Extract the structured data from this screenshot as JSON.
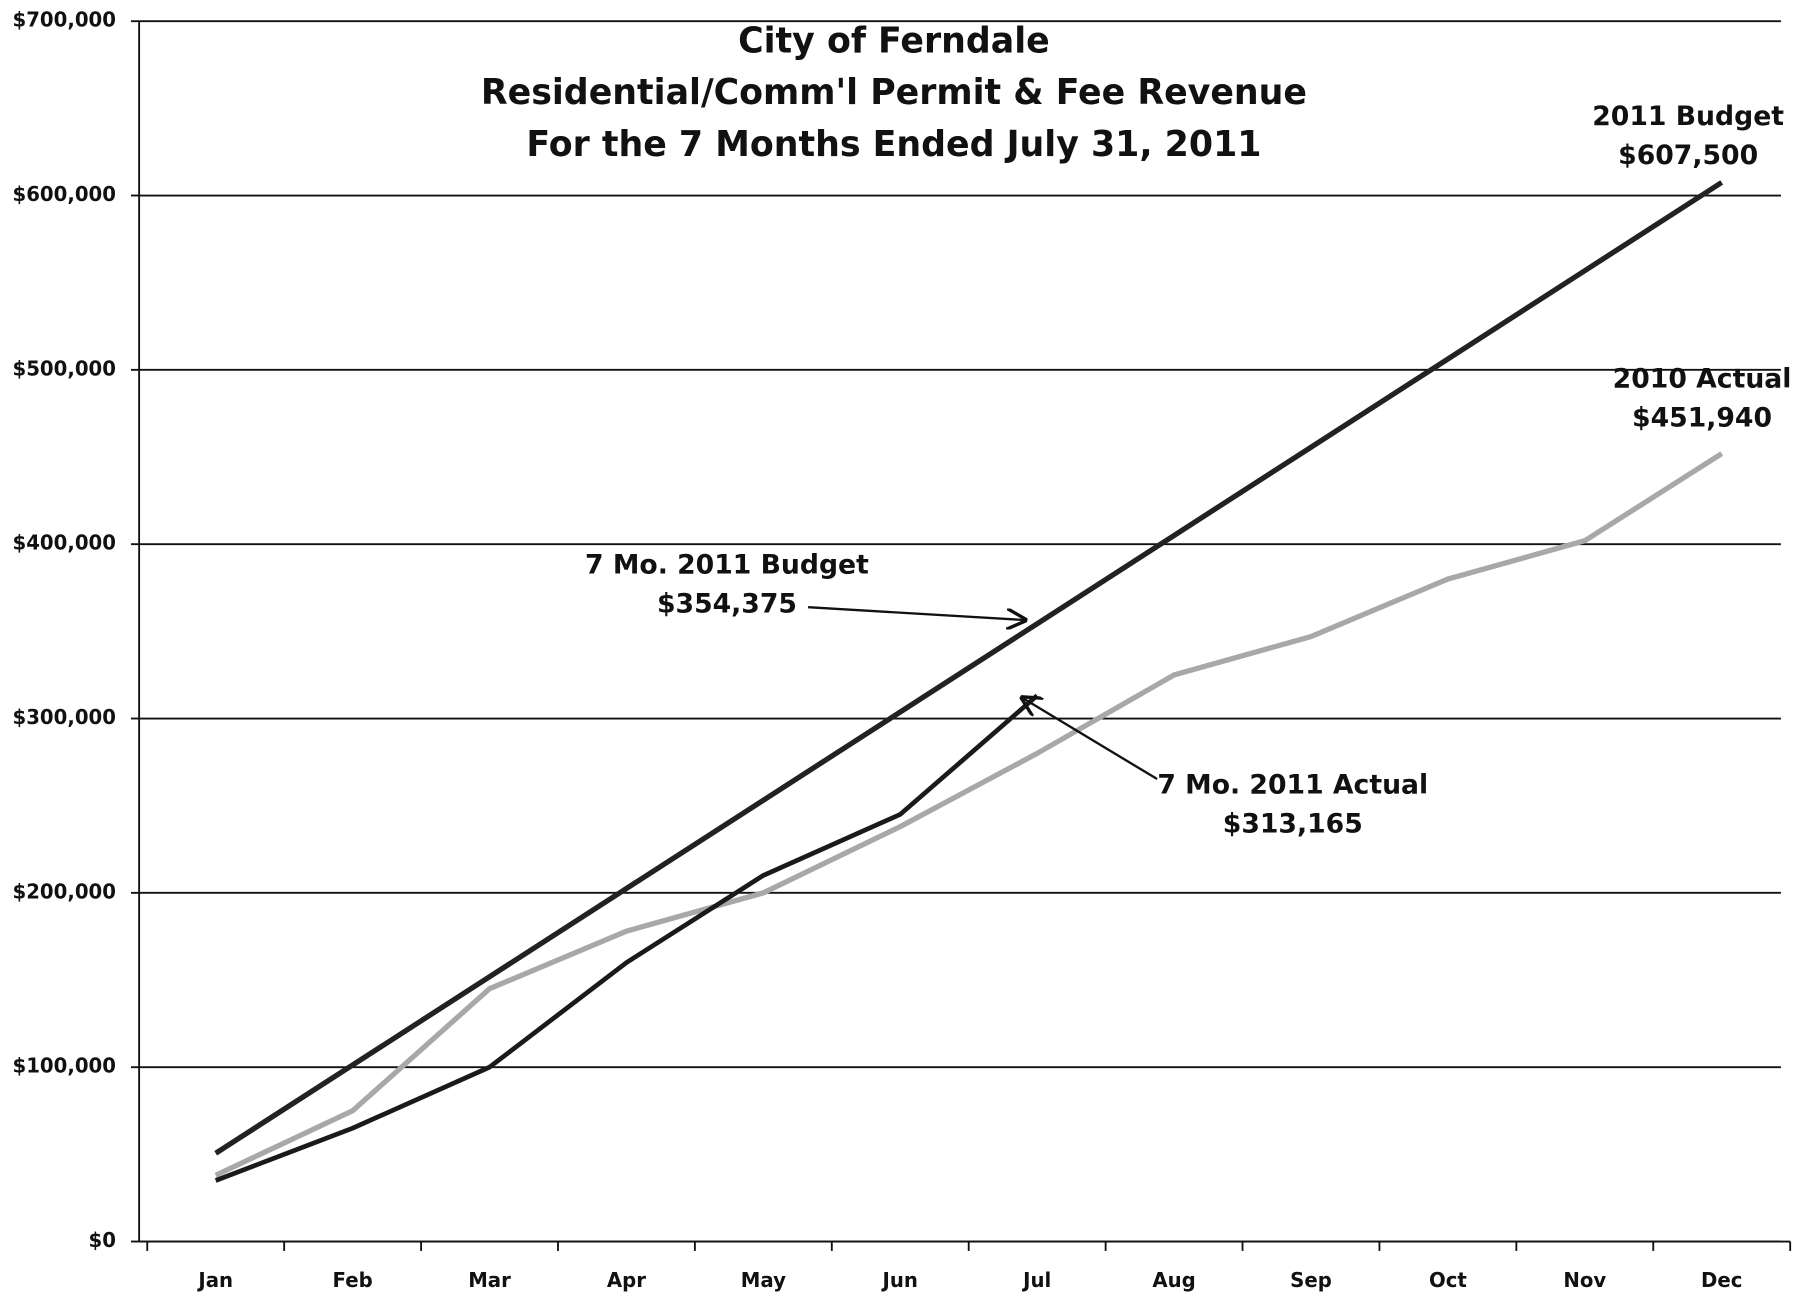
{
  "chart_data": {
    "type": "line",
    "title": [
      "City of Ferndale",
      "Residential/Comm'l Permit & Fee Revenue",
      "For the 7 Months Ended July 31, 2011"
    ],
    "categories": [
      "Jan",
      "Feb",
      "Mar",
      "Apr",
      "May",
      "Jun",
      "Jul",
      "Aug",
      "Sep",
      "Oct",
      "Nov",
      "Dec"
    ],
    "series": [
      {
        "name": "2011 Budget",
        "color": "#222222",
        "values": [
          50625,
          101250,
          151875,
          202500,
          253125,
          303750,
          354375,
          405000,
          455625,
          506250,
          556875,
          607500
        ]
      },
      {
        "name": "2010 Actual",
        "color": "#a8a8a8",
        "values": [
          38000,
          75000,
          145000,
          178000,
          200000,
          238000,
          280000,
          325000,
          347000,
          380000,
          402000,
          451940
        ]
      },
      {
        "name": "2011 Actual",
        "color": "#1a1a1a",
        "values": [
          35000,
          65000,
          100000,
          160000,
          210000,
          245000,
          313165,
          null,
          null,
          null,
          null,
          null
        ]
      }
    ],
    "annotations": [
      [
        "2011 Budget",
        "$607,500"
      ],
      [
        "2010 Actual",
        "$451,940"
      ],
      [
        "7 Mo. 2011 Budget",
        "$354,375"
      ],
      [
        "7 Mo. 2011 Actual",
        "$313,165"
      ]
    ],
    "ylim": [
      0,
      700000
    ],
    "yticks": [
      {
        "value": 0,
        "label": "$0"
      },
      {
        "value": 100000,
        "label": "$100,000"
      },
      {
        "value": 200000,
        "label": "$200,000"
      },
      {
        "value": 300000,
        "label": "$300,000"
      },
      {
        "value": 400000,
        "label": "$400,000"
      },
      {
        "value": 500000,
        "label": "$500,000"
      },
      {
        "value": 600000,
        "label": "$600,000"
      },
      {
        "value": 700000,
        "label": "$700,000"
      }
    ],
    "grid": true
  }
}
